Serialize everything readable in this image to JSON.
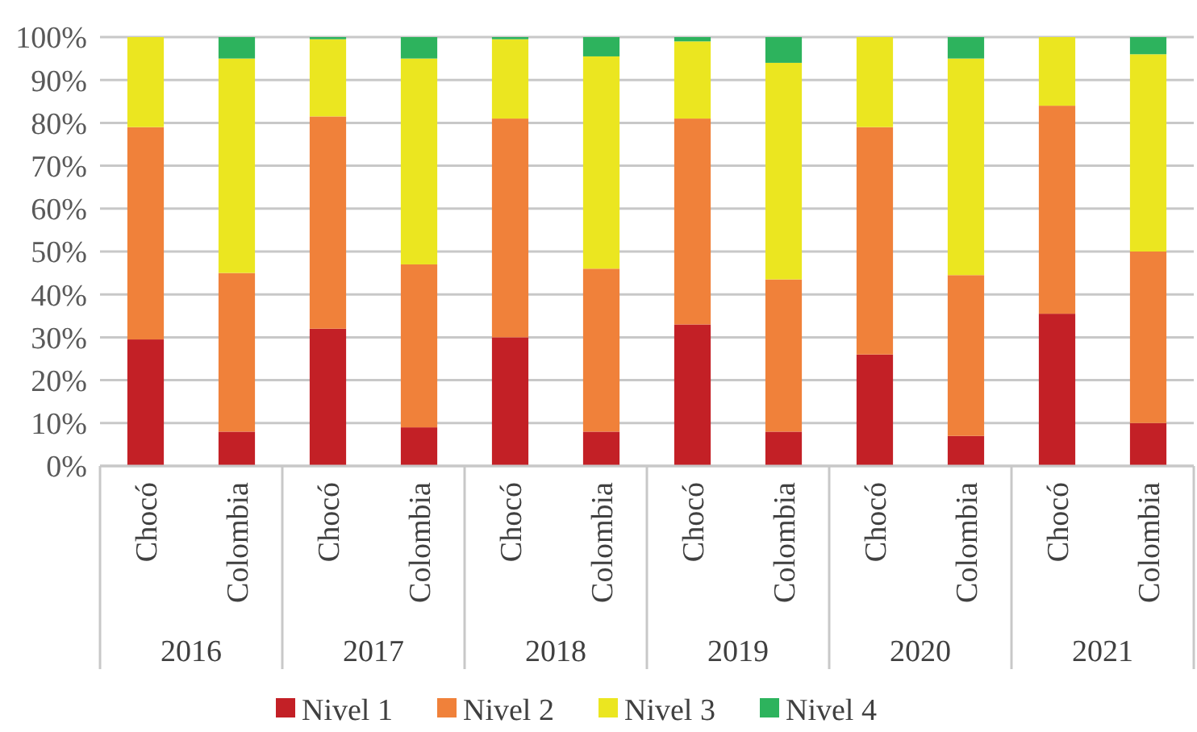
{
  "chart_data": {
    "type": "bar",
    "stacked": true,
    "categories": [
      "Chocó",
      "Colombia",
      "Chocó",
      "Colombia",
      "Chocó",
      "Colombia",
      "Chocó",
      "Colombia",
      "Chocó",
      "Colombia",
      "Chocó",
      "Colombia"
    ],
    "series": [
      {
        "name": "Nivel 1",
        "color": "#c32026",
        "values": [
          29.5,
          8,
          32,
          9,
          30,
          8,
          33,
          8,
          26,
          7,
          35.5,
          10
        ]
      },
      {
        "name": "Nivel 2",
        "color": "#f0813a",
        "values": [
          49.5,
          37,
          49.5,
          38,
          51,
          38,
          48,
          35.5,
          53,
          37.5,
          48.5,
          40
        ]
      },
      {
        "name": "Nivel 3",
        "color": "#ebe620",
        "values": [
          21,
          50,
          18,
          48,
          18.5,
          49.5,
          18,
          50.5,
          21,
          50.5,
          16,
          46
        ]
      },
      {
        "name": "Nivel 4",
        "color": "#2db35d",
        "values": [
          0,
          5,
          0.5,
          5,
          0.5,
          4.5,
          1,
          6,
          0,
          5,
          0,
          4
        ]
      }
    ],
    "annotations": [
      "2016",
      "2017",
      "2018",
      "2019",
      "2020",
      "2021"
    ],
    "ylim": [
      0,
      100
    ],
    "yticks": [
      {
        "value": 0,
        "label": "0%"
      },
      {
        "value": 10,
        "label": "10%"
      },
      {
        "value": 20,
        "label": "20%"
      },
      {
        "value": 30,
        "label": "30%"
      },
      {
        "value": 40,
        "label": "40%"
      },
      {
        "value": 50,
        "label": "50%"
      },
      {
        "value": 60,
        "label": "60%"
      },
      {
        "value": 70,
        "label": "70%"
      },
      {
        "value": 80,
        "label": "80%"
      },
      {
        "value": 90,
        "label": "90%"
      },
      {
        "value": 100,
        "label": "100%"
      }
    ],
    "grid": "y",
    "legend": "bottom"
  }
}
